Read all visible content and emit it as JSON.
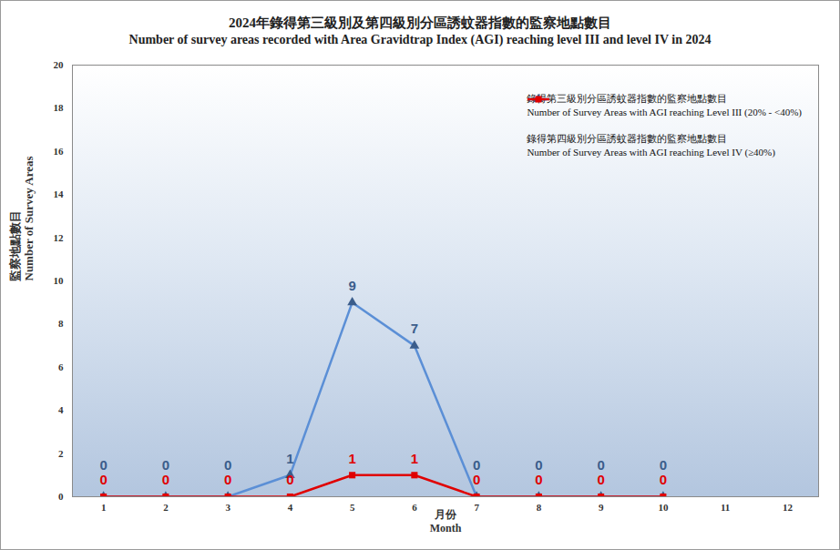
{
  "chart_data": {
    "type": "line",
    "title": "2024年錄得第三級別及第四級別分區誘蚊器指數的監察地點數目",
    "subtitle": "Number of survey areas recorded with Area Gravidtrap  Index (AGI) reaching level III and level IV in 2024",
    "x_label": "月份\nMonth",
    "y_label": "監察地點數目\nNumber of Survey Areas",
    "x": [
      1,
      2,
      3,
      4,
      5,
      6,
      7,
      8,
      9,
      10,
      11,
      12
    ],
    "xlim": [
      0.5,
      12.5
    ],
    "xticks": [
      1,
      2,
      3,
      4,
      5,
      6,
      7,
      8,
      9,
      10,
      11,
      12
    ],
    "ylim": [
      0,
      20
    ],
    "yticks": [
      0,
      2,
      4,
      6,
      8,
      10,
      12,
      14,
      16,
      18,
      20
    ],
    "grid": false,
    "legend": "top-right",
    "data_labels": true,
    "series": [
      {
        "name": "錄得第三級別分區誘蚊器指數的監察地點數目\nNumber of Survey Areas with AGI reaching Level III (20% - <40%)",
        "color": "#5b8fd6",
        "marker": "triangle",
        "values": [
          0,
          0,
          0,
          1,
          9,
          7,
          0,
          0,
          0,
          0,
          null,
          null
        ]
      },
      {
        "name": "錄得第四級別分區誘蚊器指數的監察地點數目\nNumber of Survey Areas with AGI reaching Level IV (≥40%)",
        "color": "#e00000",
        "marker": "square",
        "values": [
          0,
          0,
          0,
          0,
          1,
          1,
          0,
          0,
          0,
          0,
          null,
          null
        ]
      }
    ]
  }
}
